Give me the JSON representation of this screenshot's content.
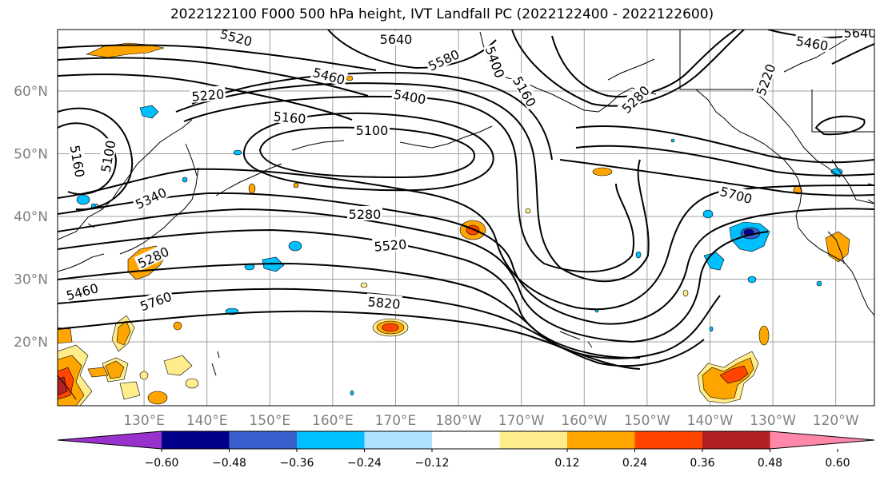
{
  "title": "2022122100 F000 500 hPa height, IVT Landfall PC (2022122400 - 2022122600)",
  "chart_data": {
    "type": "heatmap",
    "title": "2022122100 F000 500 hPa height, IVT Landfall PC (2022122400 - 2022122600)",
    "map": {
      "lon_range": [
        120,
        245
      ],
      "lat_range": [
        10,
        70
      ],
      "grid": true,
      "lat_ticks": [
        "20°N",
        "30°N",
        "40°N",
        "50°N",
        "60°N"
      ],
      "lon_ticks": [
        "130°E",
        "140°E",
        "150°E",
        "160°E",
        "170°E",
        "180°W",
        "170°W",
        "160°W",
        "150°W",
        "140°W",
        "130°W",
        "120°W"
      ]
    },
    "contours": {
      "variable": "500 hPa height",
      "labels": [
        "5520",
        "5640",
        "5580",
        "5400",
        "5220",
        "5160",
        "5460",
        "5400",
        "5220",
        "5160",
        "5100",
        "5100",
        "5160",
        "5460",
        "5280",
        "5280",
        "5340",
        "5280",
        "5700",
        "5520",
        "5460",
        "5640",
        "5760",
        "5820"
      ]
    },
    "shading": {
      "variable": "IVT Landfall PC",
      "colorbar_ticks": [
        "−0.60",
        "−0.48",
        "−0.36",
        "−0.24",
        "−0.12",
        "0.12",
        "0.24",
        "0.36",
        "0.48",
        "0.60"
      ],
      "colors": [
        "#9932cc",
        "#00008b",
        "#3a5fcd",
        "#00bfff",
        "#b0e2ff",
        "#ffffff",
        "#ffec8b",
        "#ffa500",
        "#ff4500",
        "#b22222",
        "#ff88aa"
      ],
      "extend": "both"
    }
  }
}
